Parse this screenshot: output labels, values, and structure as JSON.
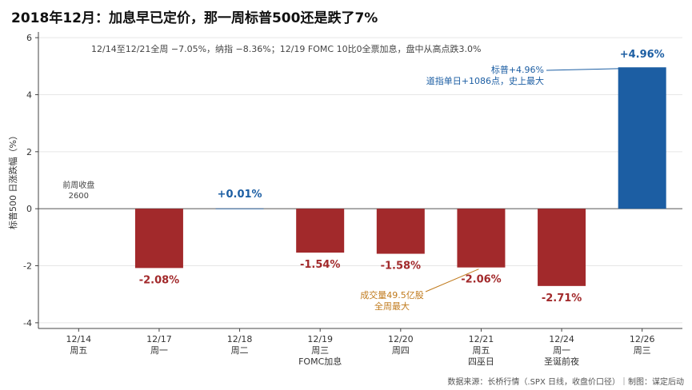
{
  "title": "2018年12月：加息早已定价，那一周标普500还是跌了7%",
  "source": "数据来源：长桥行情（.SPX 日线，收盘价口径）｜制图：谋定后动",
  "colors": {
    "down": "#a2292b",
    "up": "#1c5ea3",
    "annot_blue": "#1c5ea3",
    "annot_orange": "#c07a1c"
  },
  "chart_data": {
    "type": "bar",
    "title": "2018年12月：加息早已定价，那一周标普500还是跌了7%",
    "ylabel": "标普500 日涨跌幅（%）",
    "ylim": [
      -4.2,
      6.2
    ],
    "yticks": [
      6,
      4,
      2,
      0,
      -2,
      -4
    ],
    "grid": true,
    "categories": [
      {
        "date": "12/14",
        "weekday": "周五",
        "note": ""
      },
      {
        "date": "12/17",
        "weekday": "周一",
        "note": ""
      },
      {
        "date": "12/18",
        "weekday": "周二",
        "note": ""
      },
      {
        "date": "12/19",
        "weekday": "周三",
        "note": "FOMC加息"
      },
      {
        "date": "12/20",
        "weekday": "周四",
        "note": ""
      },
      {
        "date": "12/21",
        "weekday": "周五",
        "note": "四巫日"
      },
      {
        "date": "12/24",
        "weekday": "周一",
        "note": "圣诞前夜"
      },
      {
        "date": "12/26",
        "weekday": "周三",
        "note": ""
      }
    ],
    "values": [
      null,
      -2.08,
      0.01,
      -1.54,
      -1.58,
      -2.06,
      -2.71,
      4.96
    ],
    "value_labels": [
      "",
      "-2.08%",
      "+0.01%",
      "-1.54%",
      "-1.58%",
      "-2.06%",
      "-2.71%",
      "+4.96%"
    ],
    "prev_close_label": [
      "前周收盘",
      "2600"
    ],
    "summary_text": "12/14至12/21全周 −7.05%，纳指 −8.36%；12/19 FOMC 10比0全票加息，盘中从高点跌3.0%",
    "annotations": [
      {
        "bar": 7,
        "lines": [
          "标普+4.96%",
          "道指单日+1086点，史上最大"
        ],
        "color": "blue"
      },
      {
        "bar": 5,
        "lines": [
          "成交量49.5亿股",
          "全周最大"
        ],
        "color": "orange"
      }
    ]
  }
}
